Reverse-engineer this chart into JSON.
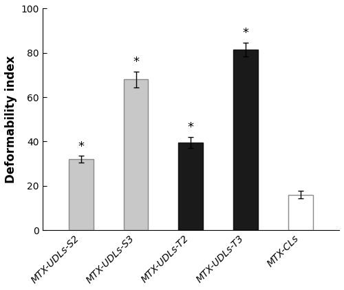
{
  "categories": [
    "MTX-UDLs-S2",
    "MTX-UDLs-S3",
    "MTX-UDLs-T2",
    "MTX-UDLs-T3",
    "MTX-CLs"
  ],
  "values": [
    32.0,
    68.0,
    39.5,
    81.5,
    16.0
  ],
  "errors": [
    1.5,
    3.5,
    2.5,
    3.0,
    1.8
  ],
  "bar_colors": [
    "#c8c8c8",
    "#c8c8c8",
    "#1a1a1a",
    "#1a1a1a",
    "#ffffff"
  ],
  "bar_edgecolors": [
    "#888888",
    "#888888",
    "#111111",
    "#111111",
    "#888888"
  ],
  "show_asterisk": [
    true,
    true,
    true,
    true,
    false
  ],
  "ylabel": "Deformability index",
  "ylim": [
    0,
    100
  ],
  "yticks": [
    0,
    20,
    40,
    60,
    80,
    100
  ],
  "bar_width": 0.45,
  "figsize": [
    5.0,
    4.21
  ],
  "dpi": 100,
  "ylabel_fontsize": 12,
  "tick_fontsize": 10,
  "asterisk_fontsize": 13,
  "xlabel_rotation": 45,
  "background_color": "#ffffff"
}
